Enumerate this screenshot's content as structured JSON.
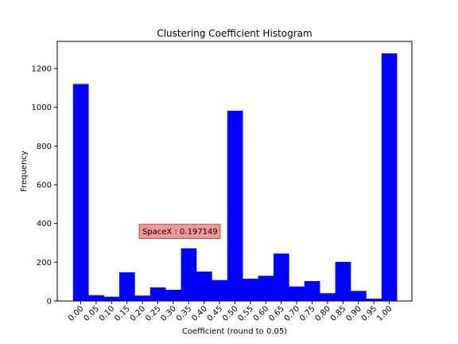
{
  "chart_data": {
    "type": "bar",
    "title": "Clustering Coefficient Histogram",
    "xlabel": "Coefficient (round to 0.05)",
    "ylabel": "Frequency",
    "categories": [
      "0.00",
      "0.05",
      "0.10",
      "0.15",
      "0.20",
      "0.25",
      "0.30",
      "0.35",
      "0.40",
      "0.45",
      "0.50",
      "0.55",
      "0.60",
      "0.65",
      "0.70",
      "0.75",
      "0.80",
      "0.85",
      "0.90",
      "0.95",
      "1.00"
    ],
    "values": [
      1120,
      30,
      22,
      148,
      28,
      70,
      58,
      272,
      152,
      108,
      982,
      115,
      130,
      245,
      75,
      103,
      40,
      202,
      52,
      12,
      1278
    ],
    "ylim": [
      0,
      1340
    ],
    "yticks": [
      0,
      200,
      400,
      600,
      800,
      1000,
      1200
    ],
    "bar_color": "#0000ff",
    "grid": false,
    "annotation": {
      "text": "SpaceX : 0.197149",
      "x": 0.197149,
      "y": 355,
      "box_color": "#f19797",
      "border_color": "#7f4b4b"
    }
  }
}
